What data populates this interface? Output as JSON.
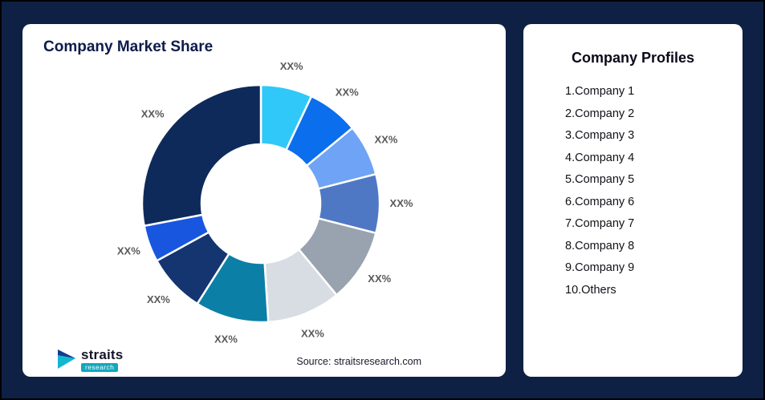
{
  "left_card": {
    "title": "Company Market Share",
    "source_note": "Source: straitsresearch.com"
  },
  "logo": {
    "name": "straits",
    "sub": "research"
  },
  "right_card": {
    "title": "Company Profiles",
    "items": [
      "1.Company 1",
      "2.Company 2",
      "3.Company 3",
      "4.Company 4",
      "5.Company 5",
      "6.Company 6",
      "7.Company 7",
      "8.Company 8",
      "9.Company 9",
      "10.Others"
    ]
  },
  "chart_data": {
    "type": "pie",
    "subtype": "donut",
    "title": "Company Market Share",
    "categories": [
      "Company 1",
      "Company 2",
      "Company 3",
      "Company 4",
      "Company 5",
      "Company 6",
      "Company 7",
      "Company 8",
      "Company 9",
      "Others"
    ],
    "labels": [
      "XX%",
      "XX%",
      "XX%",
      "XX%",
      "XX%",
      "XX%",
      "XX%",
      "XX%",
      "XX%",
      "XX%"
    ],
    "values": [
      7,
      7,
      7,
      8,
      10,
      10,
      10,
      8,
      5,
      28
    ],
    "colors": [
      "#30C8F8",
      "#0B6EEC",
      "#6FA3F5",
      "#4F78C4",
      "#98A3AF",
      "#D8DDE3",
      "#0C7FA6",
      "#14356F",
      "#1956E0",
      "#0E2A5A"
    ],
    "start_angle_deg": -90,
    "direction": "clockwise",
    "inner_radius_ratio": 0.5,
    "legend": "none",
    "segment_gap_stroke": "#ffffff"
  }
}
